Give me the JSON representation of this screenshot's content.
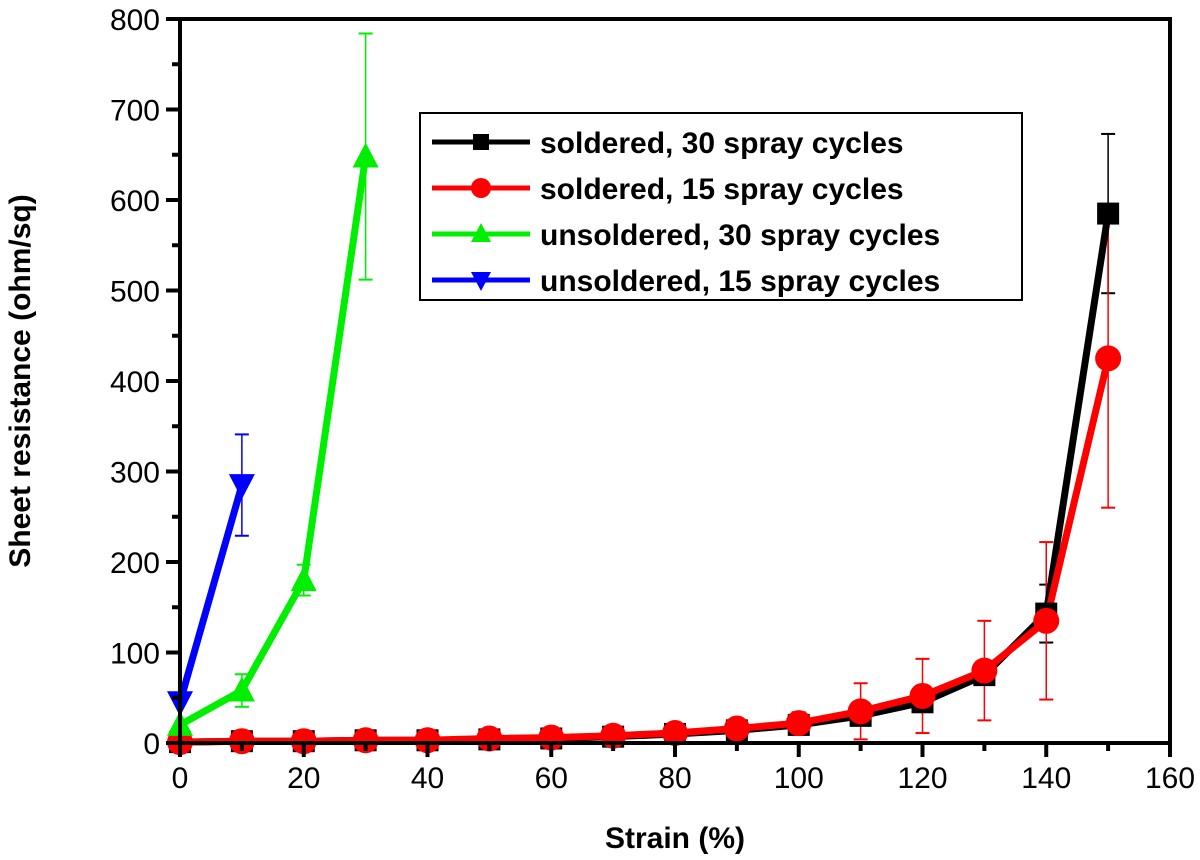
{
  "chart_data": {
    "type": "line",
    "title": "",
    "xlabel": "Strain (%)",
    "ylabel": "Sheet resistance (ohm/sq)",
    "xlim": [
      0,
      160
    ],
    "ylim": [
      0,
      800
    ],
    "xticks": [
      0,
      20,
      40,
      60,
      80,
      100,
      120,
      140,
      160
    ],
    "yticks": [
      0,
      100,
      200,
      300,
      400,
      500,
      600,
      700,
      800
    ],
    "grid": false,
    "legend_position": "top-center",
    "series": [
      {
        "name": "soldered, 30 spray cycles",
        "color": "#000000",
        "marker": "square",
        "x": [
          0,
          10,
          20,
          30,
          40,
          50,
          60,
          70,
          80,
          90,
          100,
          110,
          120,
          130,
          140,
          150
        ],
        "y": [
          1,
          2,
          2,
          3,
          3,
          4,
          5,
          7,
          10,
          14,
          20,
          30,
          45,
          75,
          143,
          585
        ],
        "err": [
          0,
          0,
          0,
          0,
          0,
          0,
          0,
          0,
          0,
          4,
          5,
          6,
          8,
          10,
          32,
          88
        ]
      },
      {
        "name": "soldered, 15 spray cycles",
        "color": "#ff0000",
        "marker": "circle",
        "x": [
          0,
          10,
          20,
          30,
          40,
          50,
          60,
          70,
          80,
          90,
          100,
          110,
          120,
          130,
          140,
          150
        ],
        "y": [
          1,
          2,
          2,
          3,
          3,
          5,
          6,
          8,
          11,
          16,
          22,
          35,
          52,
          80,
          135,
          425
        ],
        "err": [
          0,
          0,
          0,
          0,
          1,
          1,
          2,
          3,
          4,
          10,
          12,
          31,
          41,
          55,
          87,
          165
        ]
      },
      {
        "name": "unsoldered, 30 spray cycles",
        "color": "#00ee00",
        "marker": "triangle-up",
        "x": [
          0,
          10,
          20,
          30
        ],
        "y": [
          20,
          58,
          180,
          648
        ],
        "err": [
          0,
          18,
          17,
          136
        ]
      },
      {
        "name": "unsoldered, 15 spray cycles",
        "color": "#0000ff",
        "marker": "triangle-down",
        "x": [
          0,
          10
        ],
        "y": [
          45,
          285
        ],
        "err": [
          0,
          56
        ]
      }
    ]
  }
}
